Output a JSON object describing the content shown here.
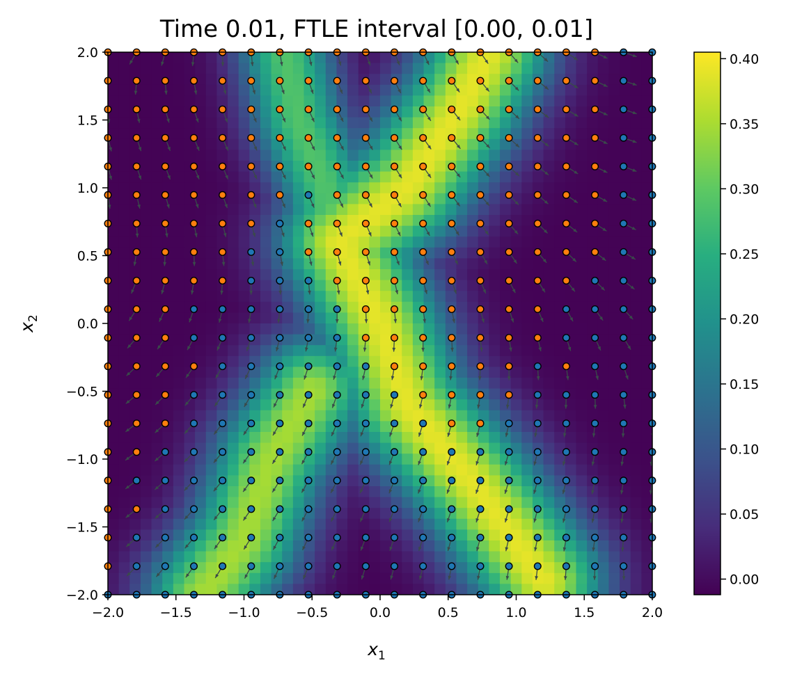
{
  "chart_data": {
    "type": "heatmap",
    "title": "Time 0.01, FTLE interval [0.00, 0.01]",
    "xlabel": "x",
    "xlabel_sub": "1",
    "ylabel": "x",
    "ylabel_sub": "2",
    "xlim": [
      -2.0,
      2.0
    ],
    "ylim": [
      -2.0,
      2.0
    ],
    "xticks": [
      -2.0,
      -1.5,
      -1.0,
      -0.5,
      0.0,
      0.5,
      1.0,
      1.5,
      2.0
    ],
    "yticks": [
      -2.0,
      -1.5,
      -1.0,
      -0.5,
      0.0,
      0.5,
      1.0,
      1.5,
      2.0
    ],
    "xtick_labels": [
      "−2.0",
      "−1.5",
      "−1.0",
      "−0.5",
      "0.0",
      "0.5",
      "1.0",
      "1.5",
      "2.0"
    ],
    "ytick_labels": [
      "−2.0",
      "−1.5",
      "−1.0",
      "−0.5",
      "0.0",
      "0.5",
      "1.0",
      "1.5",
      "2.0"
    ],
    "colorbar": {
      "colormap": "viridis",
      "range": [
        -0.012,
        0.405
      ],
      "ticks": [
        0.0,
        0.05,
        0.1,
        0.15,
        0.2,
        0.25,
        0.3,
        0.35,
        0.4
      ],
      "tick_labels": [
        "0.00",
        "0.05",
        "0.10",
        "0.15",
        "0.20",
        "0.25",
        "0.30",
        "0.35",
        "0.40"
      ]
    },
    "grid_points": {
      "start": -2.0,
      "step": 0.2105,
      "count": 20,
      "class_colors": {
        "orange": "#ff7f0e",
        "blue": "#1f77b4"
      },
      "orange_mask_rows_bottom_to_top": [
        "00000000000000000000",
        "10000000000000000000",
        "10000000000000000000",
        "11000000000000000000",
        "10000000000000000000",
        "11000000000000000000",
        "11100000000011000000",
        "11100000000111100000",
        "11110000001111101000",
        "11100000011111110000",
        "11100000011111110000",
        "11111000111111111000",
        "11111001111111111100",
        "11111101111111111100",
        "11111110111111111100",
        "11111111111111111100",
        "11111111111111111100",
        "11111111111111111100",
        "11111111111111111100",
        "11111111111111111100"
      ]
    },
    "arrow_color": "#3a4a4a",
    "boundary_colors": {
      "border": "#000000"
    }
  }
}
